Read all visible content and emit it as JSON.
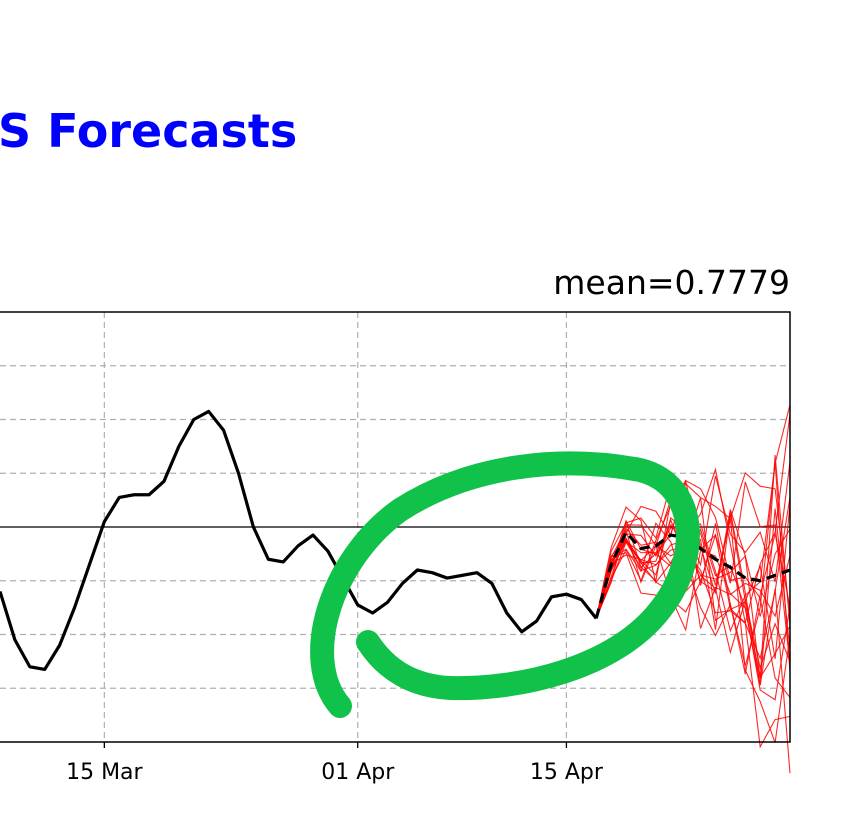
{
  "page": {
    "title": "S Forecasts",
    "mean_label": "mean=0.7779"
  },
  "colors": {
    "title": "#0000ff",
    "observed": "#000000",
    "members": "#ff0000",
    "ensemble_mean": "#000000",
    "annotation": "#10c24a",
    "grid": "#b0b0b0"
  },
  "chart_data": {
    "type": "line",
    "title": "mean=0.7779",
    "x_ticks": [
      "15 Mar",
      "01 Apr",
      "15 Apr"
    ],
    "xlim": [
      "2020-03-08",
      "2020-04-30"
    ],
    "ylim": [
      -4,
      4
    ],
    "grid": true,
    "zero_line": 0,
    "observed": {
      "x": [
        "2020-03-08",
        "2020-03-09",
        "2020-03-10",
        "2020-03-11",
        "2020-03-12",
        "2020-03-13",
        "2020-03-14",
        "2020-03-15",
        "2020-03-16",
        "2020-03-17",
        "2020-03-18",
        "2020-03-19",
        "2020-03-20",
        "2020-03-21",
        "2020-03-22",
        "2020-03-23",
        "2020-03-24",
        "2020-03-25",
        "2020-03-26",
        "2020-03-27",
        "2020-03-28",
        "2020-03-29",
        "2020-03-30",
        "2020-03-31",
        "2020-04-01",
        "2020-04-02",
        "2020-04-03",
        "2020-04-04",
        "2020-04-05",
        "2020-04-06",
        "2020-04-07",
        "2020-04-08",
        "2020-04-09",
        "2020-04-10",
        "2020-04-11",
        "2020-04-12",
        "2020-04-13",
        "2020-04-14",
        "2020-04-15",
        "2020-04-16",
        "2020-04-17"
      ],
      "y": [
        -1.2,
        -2.1,
        -2.6,
        -2.65,
        -2.2,
        -1.5,
        -0.7,
        0.1,
        0.55,
        0.6,
        0.6,
        0.85,
        1.5,
        2.0,
        2.15,
        1.8,
        1.0,
        0.0,
        -0.6,
        -0.65,
        -0.35,
        -0.15,
        -0.45,
        -0.95,
        -1.45,
        -1.6,
        -1.4,
        -1.05,
        -0.8,
        -0.85,
        -0.95,
        -0.9,
        -0.85,
        -1.05,
        -1.6,
        -1.95,
        -1.75,
        -1.3,
        -1.25,
        -1.35,
        -1.7
      ]
    },
    "ensemble_mean": {
      "x": [
        "2020-04-17",
        "2020-04-18",
        "2020-04-19",
        "2020-04-20",
        "2020-04-21",
        "2020-04-22",
        "2020-04-23",
        "2020-04-24",
        "2020-04-25",
        "2020-04-26",
        "2020-04-27",
        "2020-04-28",
        "2020-04-29",
        "2020-04-30"
      ],
      "y": [
        -1.7,
        -0.7,
        -0.1,
        -0.4,
        -0.35,
        -0.15,
        -0.2,
        -0.4,
        -0.6,
        -0.75,
        -0.95,
        -1.0,
        -0.9,
        -0.8
      ]
    },
    "members": {
      "x_start": "2020-04-17",
      "count": 20
    }
  }
}
